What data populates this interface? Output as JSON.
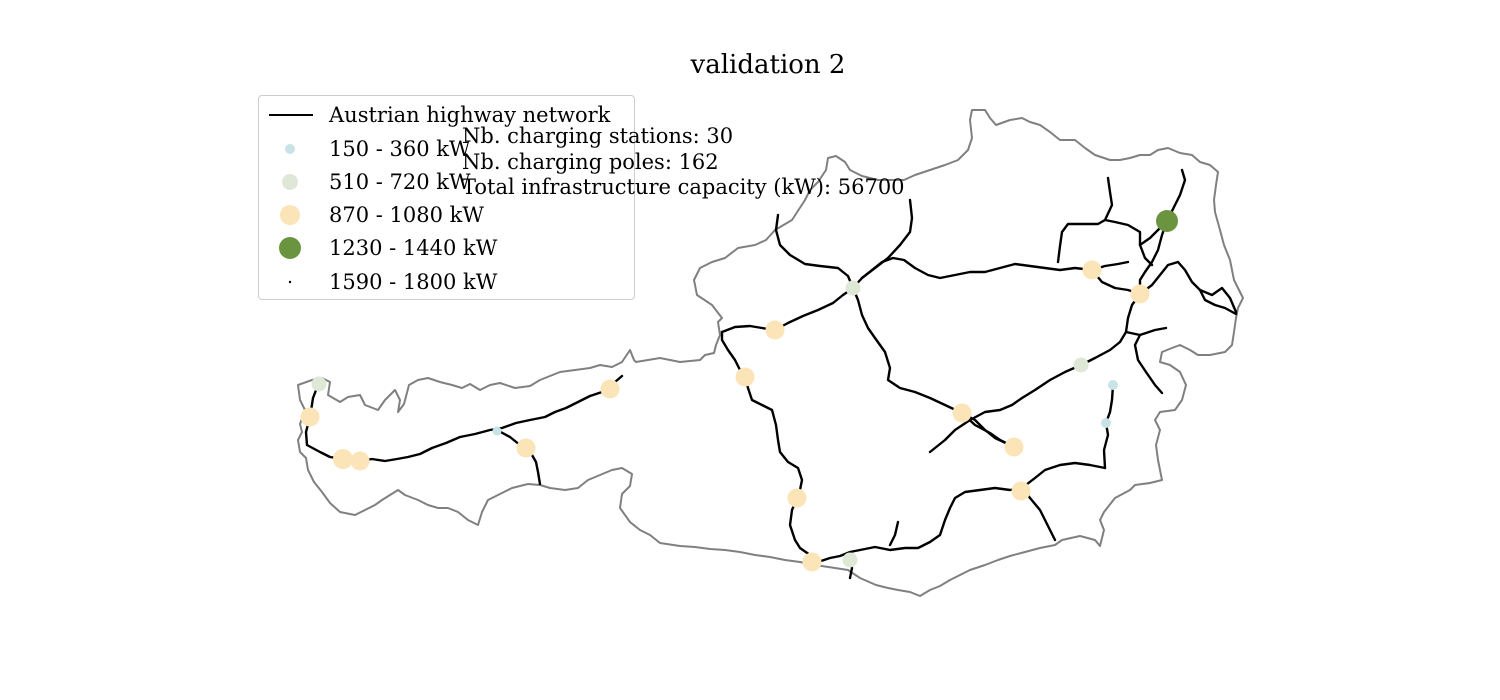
{
  "title": "validation 2",
  "legend": {
    "items": [
      {
        "label": "Austrian highway network",
        "kind": "line",
        "color": "#000000"
      },
      {
        "label": "150 - 360 kW",
        "kind": "marker",
        "color": "#c8e3e6",
        "size": "small"
      },
      {
        "label": "510 - 720 kW",
        "kind": "marker",
        "color": "#dfe8d6",
        "size": "medium"
      },
      {
        "label": "870 - 1080 kW",
        "kind": "marker",
        "color": "#fbe4b8",
        "size": "large"
      },
      {
        "label": "1230 - 1440 kW",
        "kind": "marker",
        "color": "#6a9440",
        "size": "xlarge"
      },
      {
        "label": "1590 - 1800 kW",
        "kind": "marker",
        "color": "#000000",
        "size": "tiny"
      }
    ]
  },
  "stats": {
    "stations": "Nb. charging stations: 30",
    "poles": "Nb. charging poles: 162",
    "capacity": "Total infrastructure capacity (kW): 56700"
  },
  "colors": {
    "border": "#808080",
    "highway": "#000000",
    "class_150_360": "#c8e3e6",
    "class_510_720": "#dfe8d6",
    "class_870_1080": "#fbe4b8",
    "class_1230_1440": "#6a9440"
  }
}
